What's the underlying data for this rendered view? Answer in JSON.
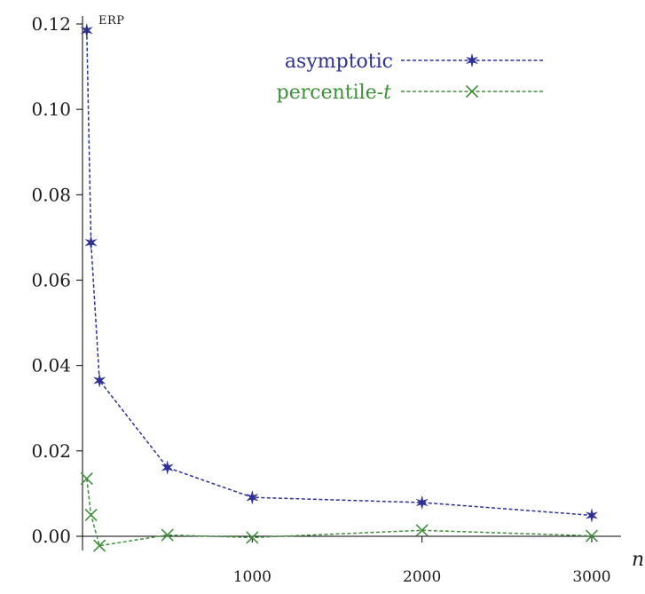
{
  "chart_data": {
    "type": "line",
    "ylabel": "ERP",
    "xlabel": "n",
    "xlim": [
      0,
      3000
    ],
    "ylim": [
      0,
      0.12
    ],
    "x_ticks": [
      1000,
      2000,
      3000
    ],
    "x_tick_labels": [
      "1000",
      "2000",
      "3000"
    ],
    "y_ticks": [
      0,
      0.02,
      0.04,
      0.06,
      0.08,
      0.1,
      0.12
    ],
    "y_tick_labels": [
      "0.00",
      "0.02",
      "0.04",
      "0.06",
      "0.08",
      "0.10",
      "0.12"
    ],
    "grid": false,
    "legend_position": "top-right",
    "series": [
      {
        "name": "asymptotic",
        "color": "#2e3192",
        "marker": "star",
        "line_style": "dashed",
        "x": [
          25,
          50,
          100,
          500,
          1000,
          2000,
          3000
        ],
        "y": [
          0.1185,
          0.0688,
          0.0365,
          0.0161,
          0.0091,
          0.0079,
          0.0049
        ]
      },
      {
        "name": "percentile-t",
        "name_parts": [
          "percentile-",
          "t"
        ],
        "color": "#3f8f3a",
        "marker": "x",
        "line_style": "dashed",
        "x": [
          25,
          50,
          100,
          500,
          1000,
          2000,
          3000
        ],
        "y": [
          0.0135,
          0.005,
          -0.0022,
          0.0003,
          -0.0003,
          0.0014,
          0.0001
        ]
      }
    ]
  }
}
